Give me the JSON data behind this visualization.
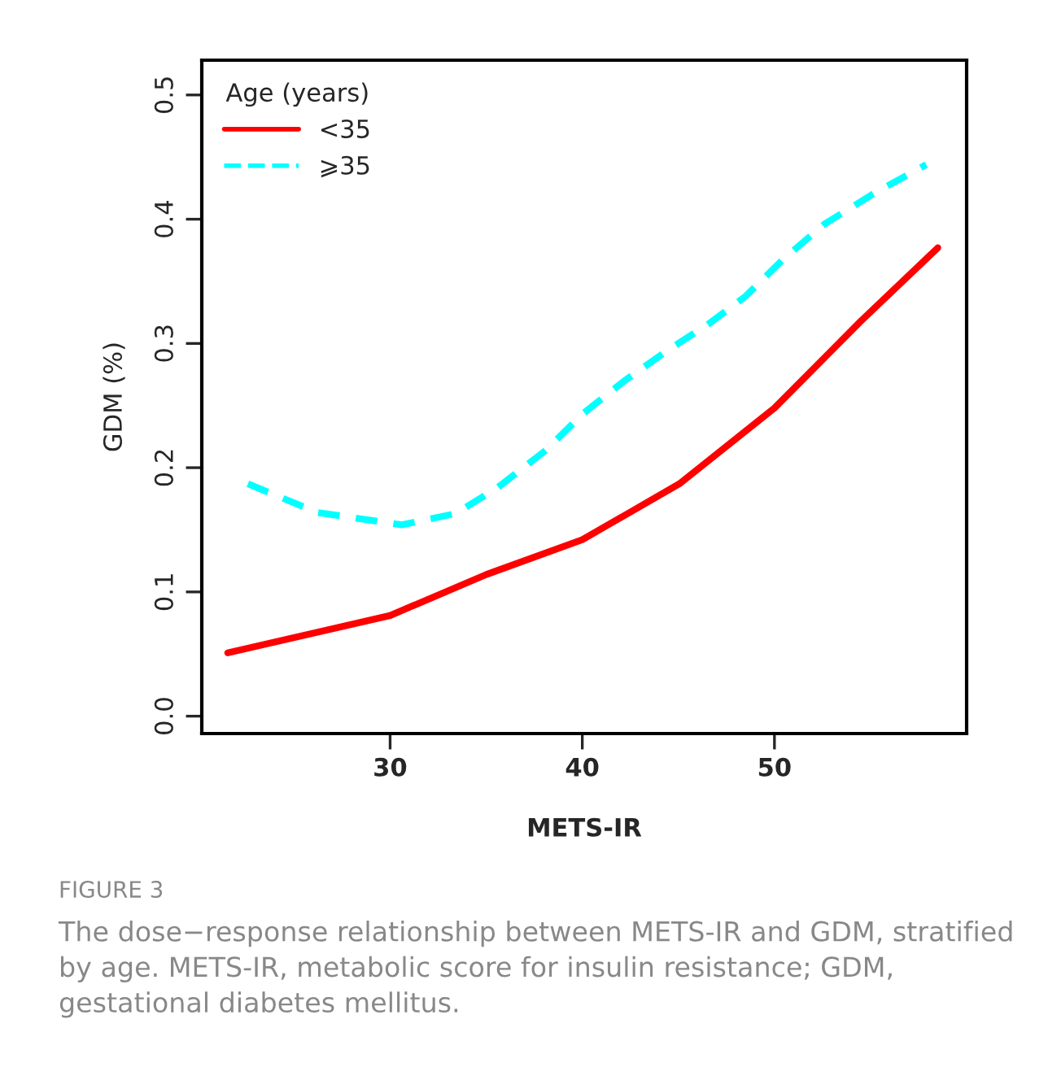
{
  "chart_data": {
    "type": "line",
    "xlabel": "METS-IR",
    "ylabel": "GDM (%)",
    "legend_title": "Age (years)",
    "legend": "top left",
    "grid": false,
    "xlim": [
      20.2,
      60.0
    ],
    "xticks": [
      30,
      40,
      50
    ],
    "ylim": [
      -0.014,
      0.528
    ],
    "yticks": [
      {
        "value": 0,
        "label": "0.0"
      },
      0.1,
      0.2,
      0.3,
      0.4,
      0.5
    ],
    "series": [
      {
        "name": "<35",
        "color": "#ff0000",
        "line_style": "solid",
        "x": [
          21.55,
          30,
          35,
          40,
          45.05,
          50,
          54.5,
          58.5
        ],
        "values": [
          0.051,
          0.081,
          0.114,
          0.142,
          0.187,
          0.248,
          0.318,
          0.377
        ]
      },
      {
        "name": "⩾35",
        "color": "#00ffff",
        "line_style": "dashed",
        "x": [
          22.6,
          26.2,
          30.6,
          33.4,
          35.6,
          38.1,
          40,
          42.2,
          44.4,
          46.6,
          48.5,
          50.4,
          52.6,
          55.1,
          57.9
        ],
        "values": [
          0.187,
          0.164,
          0.154,
          0.163,
          0.184,
          0.214,
          0.243,
          0.27,
          0.294,
          0.316,
          0.338,
          0.367,
          0.396,
          0.42,
          0.444
        ]
      }
    ],
    "annotations": [
      "FIGURE 3",
      "The dose−response relationship between METS-IR and GDM, stratified by age. METS-IR, metabolic score for insulin resistance; GDM, gestational diabetes mellitus."
    ]
  }
}
